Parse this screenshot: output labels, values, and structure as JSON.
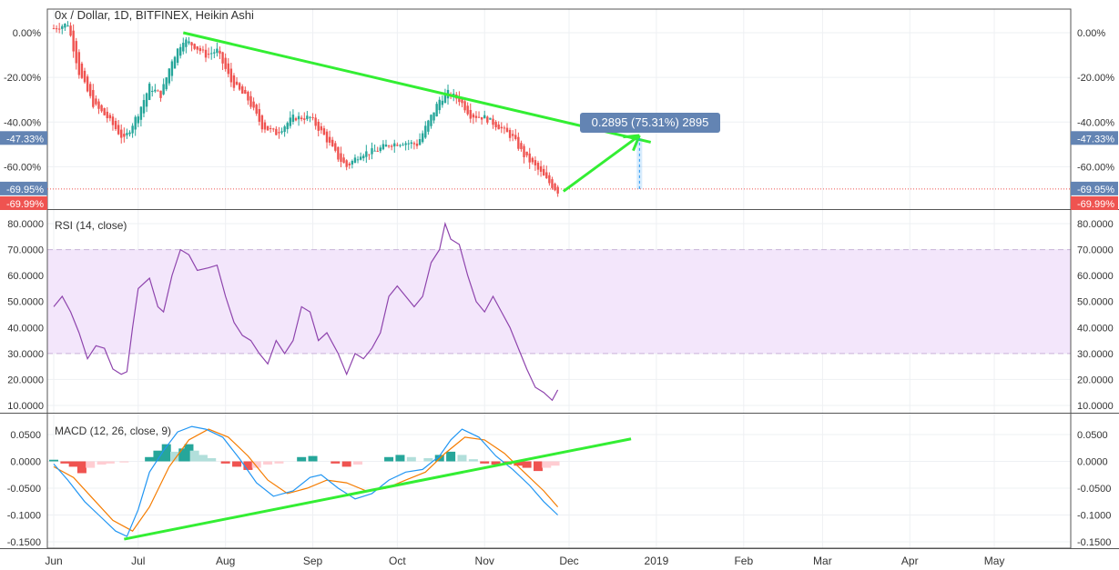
{
  "colors": {
    "up": "#26a69a",
    "down": "#ef5350",
    "trend": "#33ee33",
    "rsi_line": "#8e44ad",
    "rsi_band": "#f3e6fb",
    "macd_line": "#2196f3",
    "signal_line": "#f57c00",
    "hist_up_strong": "#26a69a",
    "hist_up_weak": "#b2dfdb",
    "hist_down_strong": "#ef5350",
    "hist_down_weak": "#ffcdd2",
    "label_bg": "#6384b3"
  },
  "chart_data": [
    {
      "type": "candlestick",
      "title": "0x / Dollar, 1D, BITFINEX, Heikin Ashi",
      "y_axis_labels": [
        "0.00%",
        "-20.00%",
        "-40.00%",
        "-60.00%"
      ],
      "ylim": [
        -75,
        10
      ],
      "x_axis_labels": [
        "Jun",
        "Jul",
        "Aug",
        "Sep",
        "Oct",
        "Nov",
        "Dec",
        "2019",
        "Feb",
        "Mar",
        "Apr",
        "May"
      ],
      "price_tags": [
        {
          "label": "-47.33%",
          "value": -47.33,
          "style": "blue"
        },
        {
          "label": "-69.95%",
          "value": -69.95,
          "style": "blue"
        },
        {
          "label": "-69.99%",
          "value": -69.99,
          "style": "red"
        }
      ],
      "measure_label": "0.2895 (75.31%) 2895",
      "trendline": {
        "from": {
          "x": "2018-07-17",
          "y": 0
        },
        "to": {
          "x": "2018-12-30",
          "y": -49
        }
      },
      "projection_arrow": {
        "from": {
          "x": "2018-11-29",
          "y": -71
        },
        "to": {
          "x": "2018-12-26",
          "y": -46
        }
      },
      "measure_range": {
        "x": "2018-12-26",
        "from": -69.95,
        "to": -47.33
      },
      "close_path": [
        {
          "x": "2018-06-01",
          "y": 2
        },
        {
          "x": "2018-06-06",
          "y": 4
        },
        {
          "x": "2018-06-10",
          "y": -18
        },
        {
          "x": "2018-06-15",
          "y": -32
        },
        {
          "x": "2018-06-20",
          "y": -38
        },
        {
          "x": "2018-06-26",
          "y": -48
        },
        {
          "x": "2018-07-01",
          "y": -36
        },
        {
          "x": "2018-07-05",
          "y": -24
        },
        {
          "x": "2018-07-09",
          "y": -28
        },
        {
          "x": "2018-07-13",
          "y": -12
        },
        {
          "x": "2018-07-17",
          "y": -3
        },
        {
          "x": "2018-07-21",
          "y": -6
        },
        {
          "x": "2018-07-25",
          "y": -10
        },
        {
          "x": "2018-07-29",
          "y": -8
        },
        {
          "x": "2018-08-03",
          "y": -22
        },
        {
          "x": "2018-08-09",
          "y": -30
        },
        {
          "x": "2018-08-14",
          "y": -42
        },
        {
          "x": "2018-08-19",
          "y": -45
        },
        {
          "x": "2018-08-25",
          "y": -38
        },
        {
          "x": "2018-08-31",
          "y": -38
        },
        {
          "x": "2018-09-05",
          "y": -46
        },
        {
          "x": "2018-09-10",
          "y": -56
        },
        {
          "x": "2018-09-13",
          "y": -60
        },
        {
          "x": "2018-09-18",
          "y": -54
        },
        {
          "x": "2018-09-23",
          "y": -53
        },
        {
          "x": "2018-09-28",
          "y": -50
        },
        {
          "x": "2018-10-03",
          "y": -49
        },
        {
          "x": "2018-10-08",
          "y": -50
        },
        {
          "x": "2018-10-12",
          "y": -40
        },
        {
          "x": "2018-10-16",
          "y": -30
        },
        {
          "x": "2018-10-19",
          "y": -27
        },
        {
          "x": "2018-10-23",
          "y": -30
        },
        {
          "x": "2018-10-27",
          "y": -37
        },
        {
          "x": "2018-11-01",
          "y": -38
        },
        {
          "x": "2018-11-06",
          "y": -42
        },
        {
          "x": "2018-11-11",
          "y": -47
        },
        {
          "x": "2018-11-15",
          "y": -55
        },
        {
          "x": "2018-11-19",
          "y": -60
        },
        {
          "x": "2018-11-23",
          "y": -66
        },
        {
          "x": "2018-11-27",
          "y": -71
        }
      ]
    },
    {
      "type": "line",
      "title": "RSI (14, close)",
      "y_axis_labels": [
        "80.0000",
        "70.0000",
        "60.0000",
        "50.0000",
        "40.0000",
        "30.0000",
        "20.0000",
        "10.0000"
      ],
      "ylim": [
        5,
        85
      ],
      "band": [
        30,
        70
      ],
      "series": [
        {
          "values": [
            {
              "x": "2018-06-01",
              "y": 48
            },
            {
              "x": "2018-06-04",
              "y": 52
            },
            {
              "x": "2018-06-07",
              "y": 46
            },
            {
              "x": "2018-06-10",
              "y": 38
            },
            {
              "x": "2018-06-13",
              "y": 28
            },
            {
              "x": "2018-06-16",
              "y": 33
            },
            {
              "x": "2018-06-19",
              "y": 32
            },
            {
              "x": "2018-06-22",
              "y": 24
            },
            {
              "x": "2018-06-25",
              "y": 22
            },
            {
              "x": "2018-06-27",
              "y": 23
            },
            {
              "x": "2018-06-29",
              "y": 40
            },
            {
              "x": "2018-07-01",
              "y": 55
            },
            {
              "x": "2018-07-05",
              "y": 59
            },
            {
              "x": "2018-07-08",
              "y": 48
            },
            {
              "x": "2018-07-10",
              "y": 46
            },
            {
              "x": "2018-07-13",
              "y": 60
            },
            {
              "x": "2018-07-16",
              "y": 70
            },
            {
              "x": "2018-07-19",
              "y": 68
            },
            {
              "x": "2018-07-22",
              "y": 62
            },
            {
              "x": "2018-07-26",
              "y": 63
            },
            {
              "x": "2018-07-29",
              "y": 64
            },
            {
              "x": "2018-08-01",
              "y": 52
            },
            {
              "x": "2018-08-04",
              "y": 42
            },
            {
              "x": "2018-08-07",
              "y": 37
            },
            {
              "x": "2018-08-10",
              "y": 35
            },
            {
              "x": "2018-08-13",
              "y": 30
            },
            {
              "x": "2018-08-16",
              "y": 26
            },
            {
              "x": "2018-08-19",
              "y": 35
            },
            {
              "x": "2018-08-22",
              "y": 30
            },
            {
              "x": "2018-08-25",
              "y": 35
            },
            {
              "x": "2018-08-28",
              "y": 48
            },
            {
              "x": "2018-08-31",
              "y": 46
            },
            {
              "x": "2018-09-03",
              "y": 35
            },
            {
              "x": "2018-09-06",
              "y": 38
            },
            {
              "x": "2018-09-10",
              "y": 30
            },
            {
              "x": "2018-09-13",
              "y": 22
            },
            {
              "x": "2018-09-16",
              "y": 30
            },
            {
              "x": "2018-09-19",
              "y": 28
            },
            {
              "x": "2018-09-22",
              "y": 32
            },
            {
              "x": "2018-09-25",
              "y": 38
            },
            {
              "x": "2018-09-28",
              "y": 52
            },
            {
              "x": "2018-10-01",
              "y": 56
            },
            {
              "x": "2018-10-04",
              "y": 52
            },
            {
              "x": "2018-10-07",
              "y": 48
            },
            {
              "x": "2018-10-10",
              "y": 52
            },
            {
              "x": "2018-10-13",
              "y": 65
            },
            {
              "x": "2018-10-16",
              "y": 70
            },
            {
              "x": "2018-10-18",
              "y": 80
            },
            {
              "x": "2018-10-20",
              "y": 74
            },
            {
              "x": "2018-10-23",
              "y": 72
            },
            {
              "x": "2018-10-26",
              "y": 60
            },
            {
              "x": "2018-10-29",
              "y": 50
            },
            {
              "x": "2018-11-01",
              "y": 46
            },
            {
              "x": "2018-11-04",
              "y": 52
            },
            {
              "x": "2018-11-07",
              "y": 46
            },
            {
              "x": "2018-11-10",
              "y": 40
            },
            {
              "x": "2018-11-13",
              "y": 32
            },
            {
              "x": "2018-11-16",
              "y": 24
            },
            {
              "x": "2018-11-19",
              "y": 17
            },
            {
              "x": "2018-11-22",
              "y": 15
            },
            {
              "x": "2018-11-25",
              "y": 12
            },
            {
              "x": "2018-11-27",
              "y": 16
            }
          ]
        }
      ]
    },
    {
      "type": "line",
      "title": "MACD (12, 26, close, 9)",
      "y_axis_labels": [
        "0.0500",
        "0.0000",
        "-0.0500",
        "-0.1000",
        "-0.1500"
      ],
      "ylim": [
        -0.16,
        0.075
      ],
      "support_trendline": {
        "from": {
          "x": "2018-06-26",
          "y": -0.145
        },
        "to": {
          "x": "2018-12-23",
          "y": 0.042
        }
      },
      "series": [
        {
          "values": [
            {
              "x": "2018-06-01",
              "y": -0.005
            },
            {
              "x": "2018-06-06",
              "y": -0.035
            },
            {
              "x": "2018-06-12",
              "y": -0.075
            },
            {
              "x": "2018-06-18",
              "y": -0.105
            },
            {
              "x": "2018-06-23",
              "y": -0.13
            },
            {
              "x": "2018-06-27",
              "y": -0.14
            },
            {
              "x": "2018-07-01",
              "y": -0.09
            },
            {
              "x": "2018-07-05",
              "y": -0.02
            },
            {
              "x": "2018-07-10",
              "y": 0.02
            },
            {
              "x": "2018-07-15",
              "y": 0.055
            },
            {
              "x": "2018-07-20",
              "y": 0.065
            },
            {
              "x": "2018-07-25",
              "y": 0.06
            },
            {
              "x": "2018-07-31",
              "y": 0.045
            },
            {
              "x": "2018-08-06",
              "y": 0.005
            },
            {
              "x": "2018-08-12",
              "y": -0.04
            },
            {
              "x": "2018-08-18",
              "y": -0.065
            },
            {
              "x": "2018-08-25",
              "y": -0.055
            },
            {
              "x": "2018-08-31",
              "y": -0.03
            },
            {
              "x": "2018-09-04",
              "y": -0.025
            },
            {
              "x": "2018-09-10",
              "y": -0.05
            },
            {
              "x": "2018-09-16",
              "y": -0.07
            },
            {
              "x": "2018-09-22",
              "y": -0.06
            },
            {
              "x": "2018-09-28",
              "y": -0.035
            },
            {
              "x": "2018-10-04",
              "y": -0.02
            },
            {
              "x": "2018-10-10",
              "y": -0.015
            },
            {
              "x": "2018-10-16",
              "y": 0.01
            },
            {
              "x": "2018-10-20",
              "y": 0.04
            },
            {
              "x": "2018-10-24",
              "y": 0.06
            },
            {
              "x": "2018-10-30",
              "y": 0.045
            },
            {
              "x": "2018-11-05",
              "y": 0.01
            },
            {
              "x": "2018-11-11",
              "y": -0.015
            },
            {
              "x": "2018-11-17",
              "y": -0.045
            },
            {
              "x": "2018-11-22",
              "y": -0.075
            },
            {
              "x": "2018-11-27",
              "y": -0.1
            }
          ]
        },
        {
          "values": [
            {
              "x": "2018-06-01",
              "y": -0.01
            },
            {
              "x": "2018-06-08",
              "y": -0.03
            },
            {
              "x": "2018-06-15",
              "y": -0.07
            },
            {
              "x": "2018-06-22",
              "y": -0.11
            },
            {
              "x": "2018-06-29",
              "y": -0.13
            },
            {
              "x": "2018-07-05",
              "y": -0.085
            },
            {
              "x": "2018-07-12",
              "y": -0.01
            },
            {
              "x": "2018-07-19",
              "y": 0.04
            },
            {
              "x": "2018-07-26",
              "y": 0.06
            },
            {
              "x": "2018-08-02",
              "y": 0.045
            },
            {
              "x": "2018-08-09",
              "y": 0.01
            },
            {
              "x": "2018-08-16",
              "y": -0.035
            },
            {
              "x": "2018-08-23",
              "y": -0.06
            },
            {
              "x": "2018-08-30",
              "y": -0.05
            },
            {
              "x": "2018-09-06",
              "y": -0.035
            },
            {
              "x": "2018-09-13",
              "y": -0.04
            },
            {
              "x": "2018-09-20",
              "y": -0.055
            },
            {
              "x": "2018-09-27",
              "y": -0.05
            },
            {
              "x": "2018-10-04",
              "y": -0.035
            },
            {
              "x": "2018-10-11",
              "y": -0.02
            },
            {
              "x": "2018-10-18",
              "y": 0.015
            },
            {
              "x": "2018-10-25",
              "y": 0.045
            },
            {
              "x": "2018-11-01",
              "y": 0.04
            },
            {
              "x": "2018-11-08",
              "y": 0.015
            },
            {
              "x": "2018-11-15",
              "y": -0.02
            },
            {
              "x": "2018-11-22",
              "y": -0.055
            },
            {
              "x": "2018-11-27",
              "y": -0.085
            }
          ]
        }
      ],
      "histogram": [
        {
          "x": "2018-06-01",
          "y": 0.003
        },
        {
          "x": "2018-06-05",
          "y": -0.004
        },
        {
          "x": "2018-06-08",
          "y": -0.01
        },
        {
          "x": "2018-06-11",
          "y": -0.022
        },
        {
          "x": "2018-06-14",
          "y": -0.012
        },
        {
          "x": "2018-06-18",
          "y": -0.006
        },
        {
          "x": "2018-06-21",
          "y": -0.004
        },
        {
          "x": "2018-06-26",
          "y": -0.002
        },
        {
          "x": "2018-07-05",
          "y": 0.008
        },
        {
          "x": "2018-07-08",
          "y": 0.02
        },
        {
          "x": "2018-07-11",
          "y": 0.032
        },
        {
          "x": "2018-07-14",
          "y": 0.018
        },
        {
          "x": "2018-07-17",
          "y": 0.024
        },
        {
          "x": "2018-07-19",
          "y": 0.032
        },
        {
          "x": "2018-07-21",
          "y": 0.02
        },
        {
          "x": "2018-07-24",
          "y": 0.012
        },
        {
          "x": "2018-07-27",
          "y": 0.006
        },
        {
          "x": "2018-08-01",
          "y": -0.004
        },
        {
          "x": "2018-08-05",
          "y": -0.01
        },
        {
          "x": "2018-08-09",
          "y": -0.016
        },
        {
          "x": "2018-08-12",
          "y": -0.012
        },
        {
          "x": "2018-08-16",
          "y": -0.006
        },
        {
          "x": "2018-08-20",
          "y": -0.004
        },
        {
          "x": "2018-08-28",
          "y": 0.008
        },
        {
          "x": "2018-09-01",
          "y": 0.01
        },
        {
          "x": "2018-09-09",
          "y": -0.004
        },
        {
          "x": "2018-09-13",
          "y": -0.01
        },
        {
          "x": "2018-09-17",
          "y": -0.006
        },
        {
          "x": "2018-09-28",
          "y": 0.008
        },
        {
          "x": "2018-10-02",
          "y": 0.012
        },
        {
          "x": "2018-10-06",
          "y": 0.008
        },
        {
          "x": "2018-10-12",
          "y": 0.006
        },
        {
          "x": "2018-10-16",
          "y": 0.012
        },
        {
          "x": "2018-10-20",
          "y": 0.018
        },
        {
          "x": "2018-10-24",
          "y": 0.012
        },
        {
          "x": "2018-10-28",
          "y": 0.004
        },
        {
          "x": "2018-11-01",
          "y": -0.004
        },
        {
          "x": "2018-11-05",
          "y": -0.006
        },
        {
          "x": "2018-11-09",
          "y": -0.006
        },
        {
          "x": "2018-11-13",
          "y": -0.008
        },
        {
          "x": "2018-11-16",
          "y": -0.012
        },
        {
          "x": "2018-11-20",
          "y": -0.018
        },
        {
          "x": "2018-11-23",
          "y": -0.012
        },
        {
          "x": "2018-11-26",
          "y": -0.008
        }
      ]
    }
  ]
}
